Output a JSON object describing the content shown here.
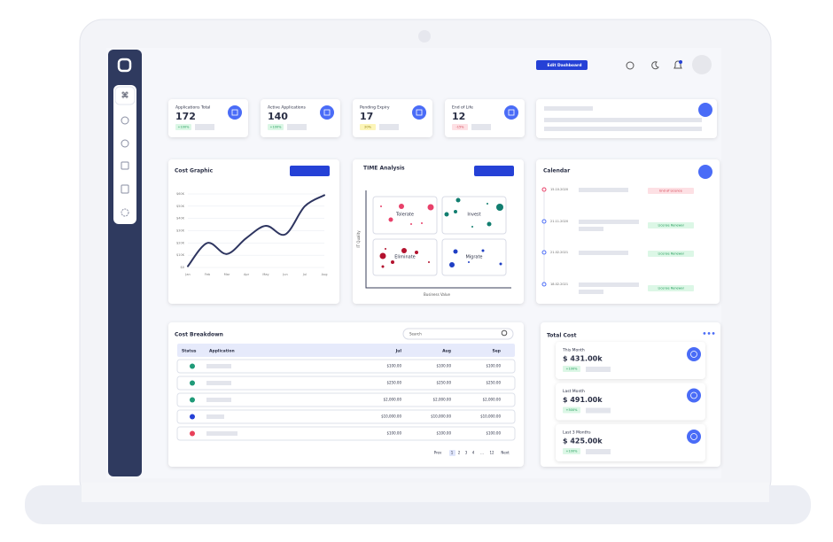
{
  "header": {
    "edit_button": "Edit Dashboard"
  },
  "stats": [
    {
      "label": "Applications Total",
      "value": 172,
      "change": "+100%"
    },
    {
      "label": "Active Applications",
      "value": 140,
      "change": "+100%"
    },
    {
      "label": "Pending Expiry",
      "value": 17,
      "change": "20%"
    },
    {
      "label": "End of Life",
      "value": 12,
      "change": "-15%"
    }
  ],
  "chart_data": {
    "type": "line",
    "title": "Cost Graphic",
    "categories": [
      "Jan",
      "Feb",
      "Mar",
      "Apr",
      "May",
      "Jun",
      "Jul",
      "Aug"
    ],
    "values": [
      1000,
      20000,
      11000,
      24000,
      34000,
      27000,
      50000,
      59000
    ],
    "color": "#2e3560",
    "ylim": [
      0,
      60000
    ],
    "yticks": [
      {
        "value": 0,
        "label": "$0"
      },
      {
        "value": 10000,
        "label": "$10K"
      },
      {
        "value": 20000,
        "label": "$20K"
      },
      {
        "value": 30000,
        "label": "$30K"
      },
      {
        "value": 40000,
        "label": "$40K"
      },
      {
        "value": 50000,
        "label": "$50K"
      },
      {
        "value": 60000,
        "label": "$60K"
      }
    ],
    "grid": true
  },
  "time_analysis": {
    "title": "TIME Analysis",
    "quadrants": [
      "Tolerate",
      "Invest",
      "Eliminate",
      "Migrate"
    ],
    "y_label": "IT Quality",
    "x_label": "Business Value"
  },
  "calendar": {
    "title": "Calendar",
    "events": [
      {
        "date": "15.10.2020",
        "status": "End of Licence"
      },
      {
        "date": "21.11.2020",
        "status": "License Renewal"
      },
      {
        "date": "21.02.2021",
        "status": "License Renewal"
      },
      {
        "date": "18.02.2021",
        "status": "License Renewal"
      }
    ]
  },
  "cost_breakdown": {
    "title": "Cost Breakdown",
    "search_placeholder": "Search",
    "columns": [
      "Status",
      "Application",
      "Jul",
      "Aug",
      "Sep"
    ],
    "rows": [
      [
        "$100.00",
        "$100.00",
        "$100.00"
      ],
      [
        "$250.00",
        "$250.00",
        "$250.00"
      ],
      [
        "$2,000.00",
        "$2,000.00",
        "$2,000.00"
      ],
      [
        "$10,000.00",
        "$10,000.00",
        "$10,000.00"
      ],
      [
        "$100.00",
        "$100.00",
        "$100.00"
      ]
    ],
    "pagination": [
      "Prev",
      "1",
      "2",
      "3",
      "4",
      "...",
      "12",
      "Next"
    ]
  },
  "total_cost": {
    "title": "Total Cost",
    "items": [
      {
        "label": "This Month",
        "amount": "$ 431.00k",
        "change": "+100%"
      },
      {
        "label": "Last Month",
        "amount": "$ 491.00k",
        "change": "+500%"
      },
      {
        "label": "Last 3 Months",
        "amount": "$ 425.00k",
        "change": "+100%"
      }
    ]
  }
}
